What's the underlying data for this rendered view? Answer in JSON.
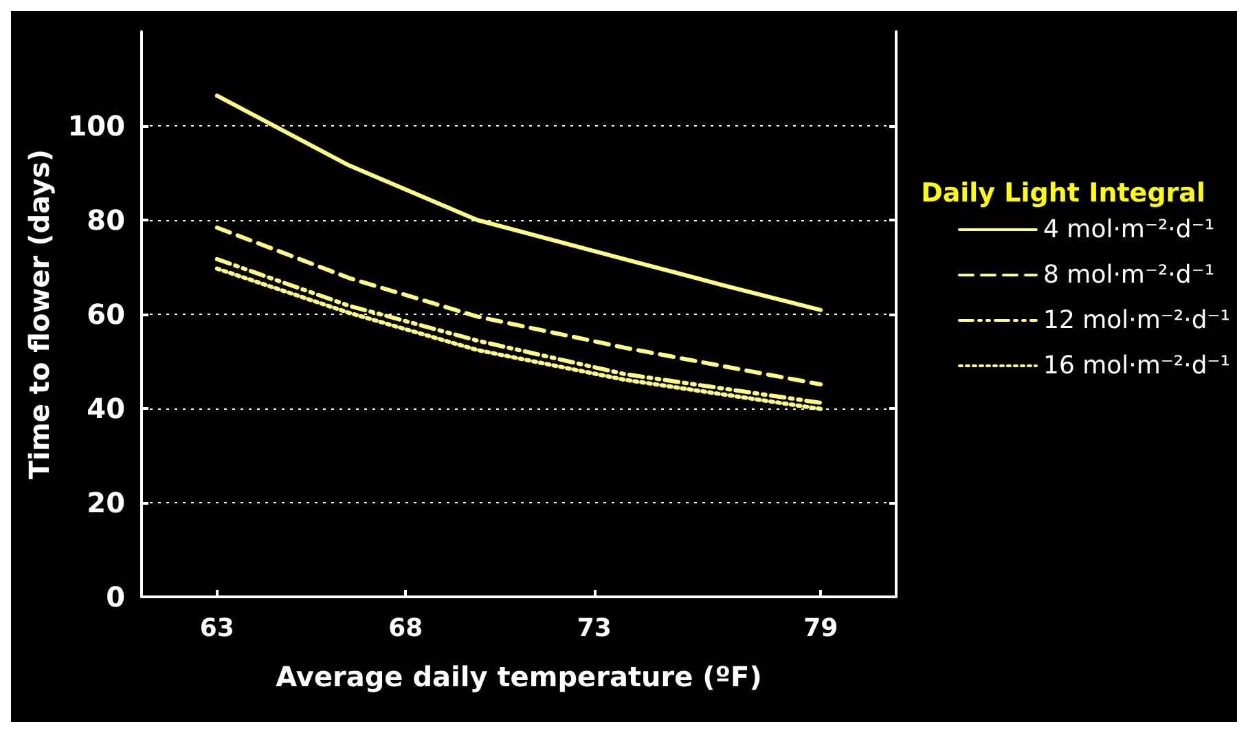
{
  "chart_data": {
    "type": "line",
    "xlabel": "Average daily temperature (ºF)",
    "ylabel": "Time to flower (days)",
    "legend_title": "Daily Light Integral",
    "xlim": [
      61,
      81
    ],
    "xticks": [
      63,
      68,
      73,
      79
    ],
    "ylim": [
      0,
      120
    ],
    "yticks": [
      0,
      20,
      40,
      60,
      80,
      100
    ],
    "grid": "y",
    "legend": "right",
    "marker": "none",
    "series": [
      {
        "name": "4 mol·m⁻²·d⁻¹",
        "color": "#ffff80",
        "line_style": "solid",
        "x": [
          63,
          66.5,
          69.9,
          73.8,
          76.4,
          79
        ],
        "values": [
          106.4,
          91.6,
          80,
          71.7,
          66.2,
          60.9
        ]
      },
      {
        "name": "8 mol·m⁻²·d⁻¹",
        "color": "#ffff80",
        "line_style": "dashed",
        "x": [
          63,
          66.5,
          69.9,
          73.8,
          79
        ],
        "values": [
          78.4,
          67.7,
          59.5,
          52.9,
          45.1
        ]
      },
      {
        "name": "12 mol·m⁻²·d⁻¹",
        "color": "#ffff80",
        "line_style": "dashdot",
        "x": [
          63,
          66.5,
          69.9,
          73.8,
          79
        ],
        "values": [
          71.7,
          61.8,
          54.4,
          47.3,
          41.2
        ]
      },
      {
        "name": "16 mol·m⁻²·d⁻¹",
        "color": "#ffff80",
        "line_style": "dotted",
        "x": [
          63,
          66.5,
          69.9,
          73.8,
          79
        ],
        "values": [
          69.7,
          60.3,
          52.4,
          46.1,
          39.9
        ]
      }
    ]
  }
}
